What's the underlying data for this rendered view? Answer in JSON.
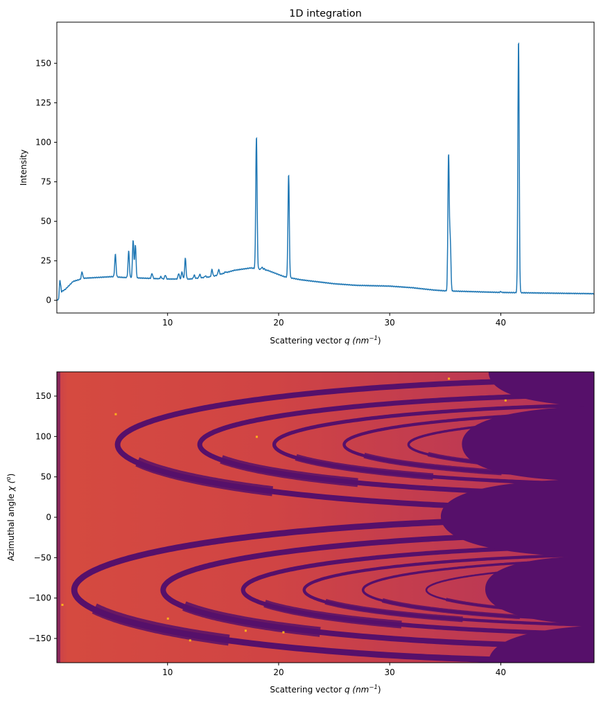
{
  "chart_data": [
    {
      "type": "line",
      "title": "1D integration",
      "xlabel": {
        "prefix": "Scattering vector ",
        "var": "q",
        "unit_open": " (nm",
        "exp": "−1",
        "unit_close": ")"
      },
      "ylabel": "Intensity",
      "xlim": [
        0.03,
        48.4
      ],
      "ylim": [
        -8,
        176
      ],
      "xticks": [
        10,
        20,
        30,
        40
      ],
      "yticks": [
        0,
        25,
        50,
        75,
        100,
        125,
        150
      ],
      "grid": false,
      "color": "#1f77b4",
      "baseline": [
        [
          0.05,
          0
        ],
        [
          0.2,
          1
        ],
        [
          0.3,
          13.5
        ],
        [
          0.45,
          5.5
        ],
        [
          0.8,
          7
        ],
        [
          1.5,
          12
        ],
        [
          2.5,
          14
        ],
        [
          5,
          15
        ],
        [
          6,
          14.5
        ],
        [
          8,
          14
        ],
        [
          10,
          13.5
        ],
        [
          12,
          13.5
        ],
        [
          14,
          15
        ],
        [
          16,
          19
        ],
        [
          17.5,
          20.5
        ],
        [
          19,
          19
        ],
        [
          20.5,
          15
        ],
        [
          22,
          13
        ],
        [
          25,
          10.5
        ],
        [
          27,
          9.5
        ],
        [
          30,
          9
        ],
        [
          32,
          8
        ],
        [
          34,
          6.5
        ],
        [
          35,
          6
        ],
        [
          40,
          5
        ],
        [
          45,
          4.5
        ],
        [
          48.4,
          4.2
        ]
      ],
      "peaks": [
        [
          2.3,
          18
        ],
        [
          5.3,
          29
        ],
        [
          6.5,
          31
        ],
        [
          6.9,
          38
        ],
        [
          7.1,
          35
        ],
        [
          8.6,
          17
        ],
        [
          9.4,
          15
        ],
        [
          9.8,
          16
        ],
        [
          11.0,
          17
        ],
        [
          11.3,
          18
        ],
        [
          11.6,
          26.5
        ],
        [
          12.4,
          16
        ],
        [
          12.9,
          16.5
        ],
        [
          13.4,
          15.5
        ],
        [
          14.0,
          19.5
        ],
        [
          14.6,
          19.5
        ],
        [
          15.2,
          18
        ],
        [
          18.0,
          103.5
        ],
        [
          18.5,
          21
        ],
        [
          18.7,
          20
        ],
        [
          20.9,
          79.5
        ],
        [
          23.6,
          11
        ],
        [
          32.1,
          8
        ],
        [
          35.3,
          91.5
        ],
        [
          35.45,
          37.5
        ],
        [
          40.0,
          5.5
        ],
        [
          41.6,
          164.5
        ]
      ]
    },
    {
      "type": "heatmap",
      "xlabel": {
        "prefix": "Scattering vector ",
        "var": "q",
        "unit_open": " (nm",
        "exp": "−1",
        "unit_close": ")"
      },
      "ylabel": {
        "prefix": "Azimuthal angle ",
        "var": "χ",
        "unit_open": " (",
        "exp": "o",
        "unit_close": ")"
      },
      "xlim": [
        0.03,
        48.4
      ],
      "ylim": [
        -180,
        180
      ],
      "xticks": [
        10,
        20,
        30,
        40
      ],
      "yticks": [
        -150,
        -100,
        -50,
        0,
        50,
        100,
        150
      ],
      "colormap": "inferno",
      "colors": {
        "low": "#56106a",
        "bg_left": "#d54a40",
        "bg_right": "#b3335b",
        "hot": "#fcb01c"
      },
      "mask_boundary": [
        [
          38.9,
          180
        ],
        [
          47.5,
          137.6
        ],
        [
          36.5,
          90.6
        ],
        [
          45.2,
          46.2
        ],
        [
          34.6,
          0.9
        ],
        [
          46.3,
          -48.7
        ],
        [
          38.6,
          -88.9
        ],
        [
          48.4,
          -134
        ],
        [
          38.9,
          -180
        ]
      ],
      "rings": [
        {
          "chi": -90,
          "q_vertex": 1.6,
          "width": 1.0,
          "spread": 88
        },
        {
          "chi": -90,
          "q_vertex": 9.6,
          "width": 0.9,
          "spread": 70
        },
        {
          "chi": -90,
          "q_vertex": 16.8,
          "width": 0.7,
          "spread": 55
        },
        {
          "chi": -90,
          "q_vertex": 22.3,
          "width": 0.5,
          "spread": 45
        },
        {
          "chi": -90,
          "q_vertex": 27.6,
          "width": 0.4,
          "spread": 40
        },
        {
          "chi": -90,
          "q_vertex": 33.3,
          "width": 0.3,
          "spread": 35
        },
        {
          "chi": 90,
          "q_vertex": 5.5,
          "width": 0.9,
          "spread": 80
        },
        {
          "chi": 90,
          "q_vertex": 12.9,
          "width": 0.8,
          "spread": 62
        },
        {
          "chi": 90,
          "q_vertex": 19.6,
          "width": 0.6,
          "spread": 50
        },
        {
          "chi": 90,
          "q_vertex": 25.9,
          "width": 0.5,
          "spread": 42
        },
        {
          "chi": 90,
          "q_vertex": 31.7,
          "width": 0.4,
          "spread": 36
        }
      ]
    }
  ]
}
